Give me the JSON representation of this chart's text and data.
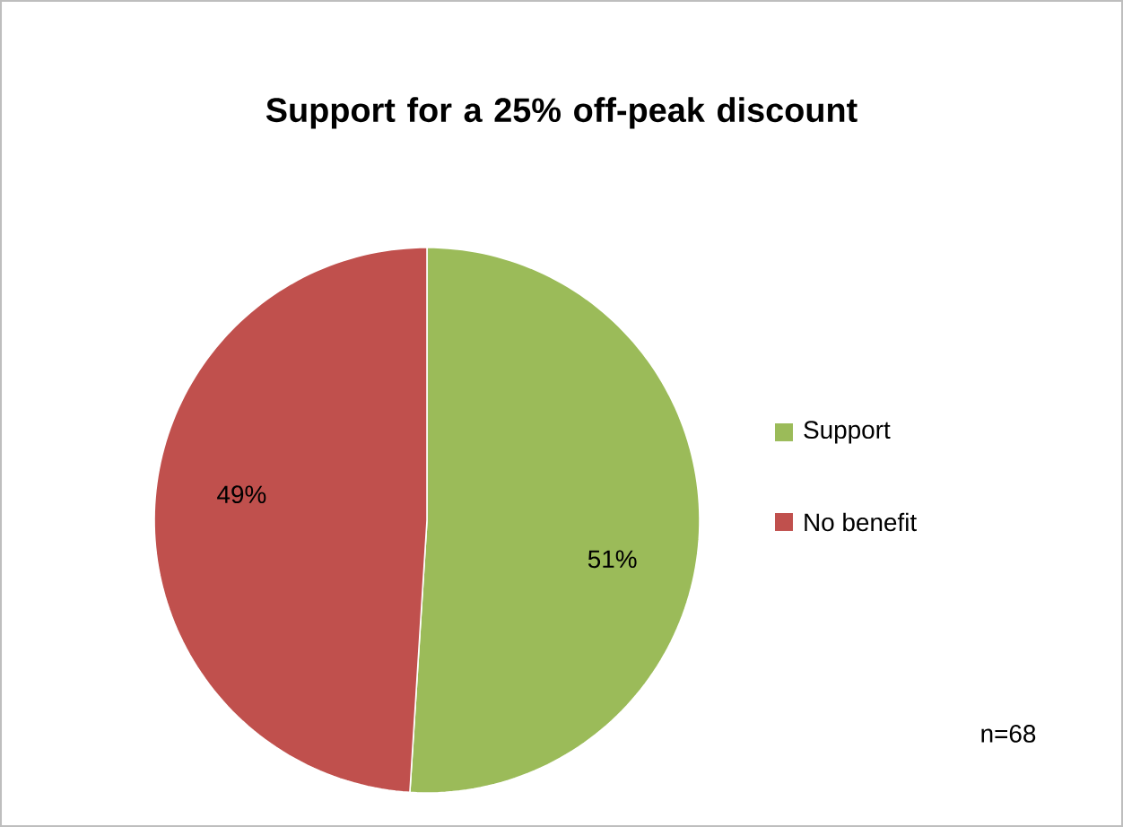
{
  "chart_data": {
    "type": "pie",
    "title": "Support for a 25% off-peak discount",
    "categories": [
      "Support",
      "No benefit"
    ],
    "values": [
      51,
      49
    ],
    "colors": [
      "#9bbb59",
      "#c0504d"
    ],
    "value_labels": [
      "51%",
      "49%"
    ],
    "legend": "right",
    "annotations": [
      "n=68"
    ]
  }
}
